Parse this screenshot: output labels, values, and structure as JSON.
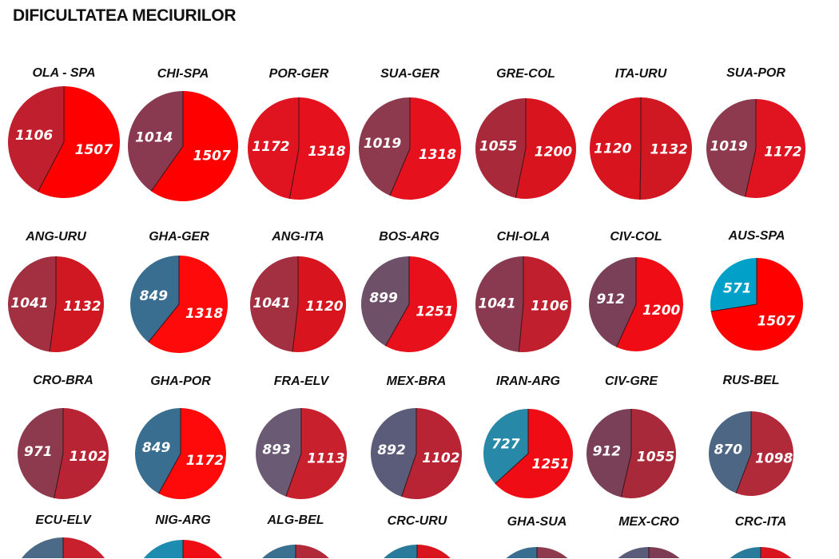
{
  "chart_data": {
    "type": "pie",
    "title": "DIFICULTATEA MECIURILOR",
    "pies": [
      {
        "name": "OLA - SPA",
        "values": [
          1106,
          1507
        ],
        "colors": [
          "#c0202e",
          "#ff0000"
        ]
      },
      {
        "name": "CHI-SPA",
        "values": [
          1014,
          1507
        ],
        "colors": [
          "#8a3a50",
          "#ff0000"
        ]
      },
      {
        "name": "POR-GER",
        "values": [
          1172,
          1318
        ],
        "colors": [
          "#df1420",
          "#e5111c"
        ]
      },
      {
        "name": "SUA-GER",
        "values": [
          1019,
          1318
        ],
        "colors": [
          "#8e3a4e",
          "#e5111c"
        ]
      },
      {
        "name": "GRE-COL",
        "values": [
          1055,
          1200
        ],
        "colors": [
          "#a82a3a",
          "#d8141e"
        ]
      },
      {
        "name": "ITA-URU",
        "values": [
          1120,
          1132
        ],
        "colors": [
          "#d8141e",
          "#d01822"
        ]
      },
      {
        "name": "SUA-POR",
        "values": [
          1019,
          1172
        ],
        "colors": [
          "#8e3a4e",
          "#df1420"
        ]
      },
      {
        "name": "ANG-URU",
        "values": [
          1041,
          1132
        ],
        "colors": [
          "#a33040",
          "#d01822"
        ]
      },
      {
        "name": "GHA-GER",
        "values": [
          849,
          1318
        ],
        "colors": [
          "#3a6e90",
          "#ff0a0a"
        ]
      },
      {
        "name": "ANG-ITA",
        "values": [
          1041,
          1120
        ],
        "colors": [
          "#a33040",
          "#d8141e"
        ]
      },
      {
        "name": "BOS-ARG",
        "values": [
          899,
          1251
        ],
        "colors": [
          "#6e5068",
          "#e8101a"
        ]
      },
      {
        "name": "CHI-OLA",
        "values": [
          1041,
          1106
        ],
        "colors": [
          "#8a3a50",
          "#c0202e"
        ]
      },
      {
        "name": "CIV-COL",
        "values": [
          912,
          1200
        ],
        "colors": [
          "#7a4058",
          "#f00c14"
        ]
      },
      {
        "name": "AUS-SPA",
        "values": [
          571,
          1507
        ],
        "colors": [
          "#00a0c8",
          "#ff0000"
        ]
      },
      {
        "name": "CRO-BRA",
        "values": [
          971,
          1102
        ],
        "colors": [
          "#8e3a4e",
          "#b82434"
        ]
      },
      {
        "name": "GHA-POR",
        "values": [
          849,
          1172
        ],
        "colors": [
          "#3a6e90",
          "#ff0a0a"
        ]
      },
      {
        "name": "FRA-ELV",
        "values": [
          893,
          1113
        ],
        "colors": [
          "#6a5a74",
          "#c8202c"
        ]
      },
      {
        "name": "MEX-BRA",
        "values": [
          892,
          1102
        ],
        "colors": [
          "#5a5c7a",
          "#b82434"
        ]
      },
      {
        "name": "IRAN-ARG",
        "values": [
          727,
          1251
        ],
        "colors": [
          "#2888a8",
          "#f00c14"
        ]
      },
      {
        "name": "CIV-GRE",
        "values": [
          912,
          1055
        ],
        "colors": [
          "#7a4058",
          "#a82a3a"
        ]
      },
      {
        "name": "RUS-BEL",
        "values": [
          870,
          1098
        ],
        "colors": [
          "#4c6684",
          "#b02a3a"
        ]
      },
      {
        "name": "ECU-ELV",
        "values": [
          1,
          1
        ],
        "colors": [
          "#4a6a88",
          "#c8202c"
        ]
      },
      {
        "name": "NIG-ARG",
        "values": [
          1,
          1
        ],
        "colors": [
          "#1e8cb0",
          "#f00c14"
        ]
      },
      {
        "name": "ALG-BEL",
        "values": [
          1,
          1
        ],
        "colors": [
          "#3a7090",
          "#b02a3a"
        ]
      },
      {
        "name": "CRC-URU",
        "values": [
          1,
          1
        ],
        "colors": [
          "#2a7a9c",
          "#d8141e"
        ]
      },
      {
        "name": "GHA-SUA",
        "values": [
          1,
          1
        ],
        "colors": [
          "#3a6e90",
          "#8e3a4e"
        ]
      },
      {
        "name": "MEX-CRO",
        "values": [
          1,
          1
        ],
        "colors": [
          "#5a5c7a",
          "#7e3c54"
        ]
      },
      {
        "name": "CRC-ITA",
        "values": [
          1,
          1
        ],
        "colors": [
          "#2a7a9c",
          "#d8141e"
        ]
      }
    ],
    "labels_visible_rows": 3
  }
}
